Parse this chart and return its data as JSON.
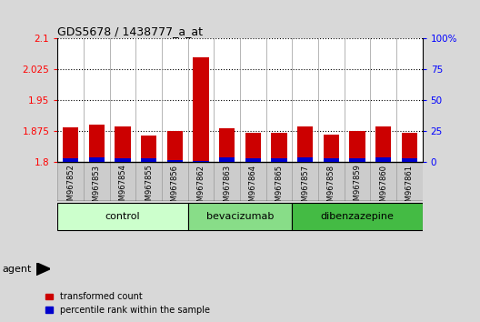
{
  "title": "GDS5678 / 1438777_a_at",
  "samples": [
    "GSM967852",
    "GSM967853",
    "GSM967854",
    "GSM967855",
    "GSM967856",
    "GSM967862",
    "GSM967863",
    "GSM967864",
    "GSM967865",
    "GSM967857",
    "GSM967858",
    "GSM967859",
    "GSM967860",
    "GSM967861"
  ],
  "transformed_count": [
    1.885,
    1.892,
    1.888,
    1.865,
    1.875,
    2.055,
    1.882,
    1.872,
    1.872,
    1.888,
    1.868,
    1.875,
    1.888,
    1.872
  ],
  "percentile_rank": [
    3,
    4,
    3,
    3,
    2,
    1,
    4,
    3,
    3,
    4,
    3,
    3,
    4,
    3
  ],
  "ylim_left": [
    1.8,
    2.1
  ],
  "ylim_right": [
    0,
    100
  ],
  "yticks_left": [
    1.8,
    1.875,
    1.95,
    2.025,
    2.1
  ],
  "ytick_labels_left": [
    "1.8",
    "1.875",
    "1.95",
    "2.025",
    "2.1"
  ],
  "yticks_right": [
    0,
    25,
    50,
    75,
    100
  ],
  "ytick_labels_right": [
    "0",
    "25",
    "50",
    "75",
    "100%"
  ],
  "groups": [
    {
      "label": "control",
      "start": 0,
      "end": 5,
      "color": "#ccffcc"
    },
    {
      "label": "bevacizumab",
      "start": 5,
      "end": 9,
      "color": "#88dd88"
    },
    {
      "label": "dibenzazepine",
      "start": 9,
      "end": 14,
      "color": "#44bb44"
    }
  ],
  "agent_label": "agent",
  "bar_color_red": "#cc0000",
  "bar_color_blue": "#0000cc",
  "bar_width": 0.6,
  "background_color": "#d8d8d8",
  "plot_bg": "#ffffff",
  "tick_bg": "#cccccc",
  "legend_red": "transformed count",
  "legend_blue": "percentile rank within the sample",
  "baseline": 1.8
}
